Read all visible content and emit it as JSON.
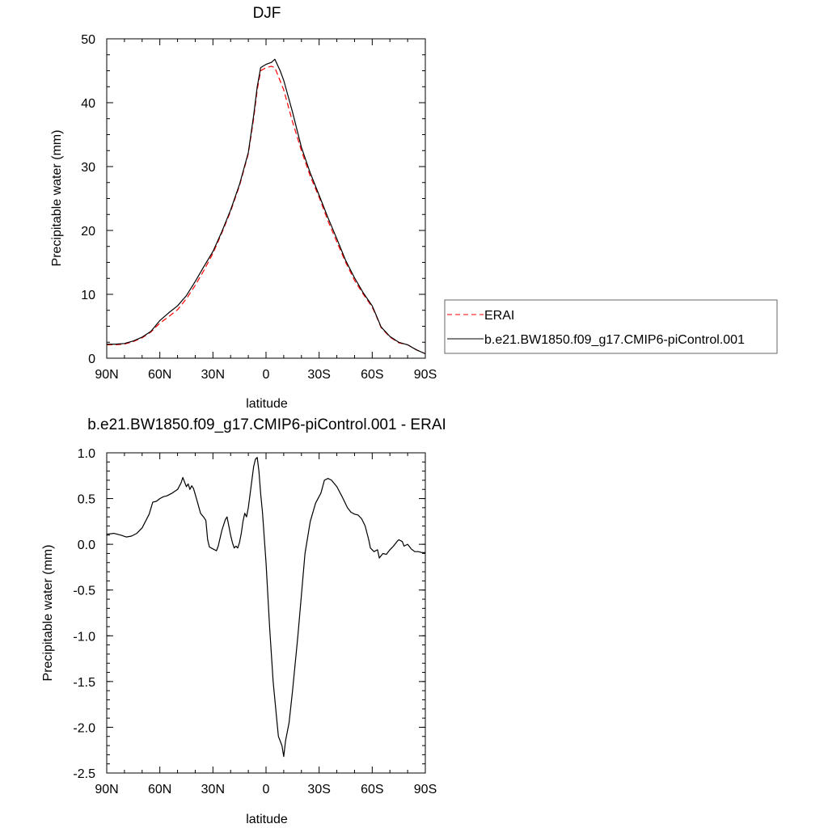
{
  "chart_data": [
    {
      "type": "line",
      "title": "DJF",
      "xlabel": "latitude",
      "ylabel": "Precipitable water (mm)",
      "xlim": [
        90,
        -90
      ],
      "ylim": [
        0,
        50
      ],
      "x_ticks": [
        {
          "value": 90,
          "label": "90N"
        },
        {
          "value": 60,
          "label": "60N"
        },
        {
          "value": 30,
          "label": "30N"
        },
        {
          "value": 0,
          "label": "0"
        },
        {
          "value": -30,
          "label": "30S"
        },
        {
          "value": -60,
          "label": "60S"
        },
        {
          "value": -90,
          "label": "90S"
        }
      ],
      "y_ticks": [
        0,
        10,
        20,
        30,
        40,
        50
      ],
      "legend_placement": "right",
      "series": [
        {
          "name": "ERAI",
          "color": "#ff0000",
          "dash": "dashed",
          "points": [
            [
              90,
              2.1
            ],
            [
              85,
              2.1
            ],
            [
              80,
              2.2
            ],
            [
              75,
              2.6
            ],
            [
              70,
              3.2
            ],
            [
              65,
              4.1
            ],
            [
              60,
              5.5
            ],
            [
              55,
              6.5
            ],
            [
              50,
              7.6
            ],
            [
              45,
              9.3
            ],
            [
              40,
              11.4
            ],
            [
              35,
              13.8
            ],
            [
              30,
              16.4
            ],
            [
              25,
              19.6
            ],
            [
              20,
              23.0
            ],
            [
              15,
              27.0
            ],
            [
              10,
              32.0
            ],
            [
              7,
              37.5
            ],
            [
              5,
              42.0
            ],
            [
              3,
              45.0
            ],
            [
              0,
              45.5
            ],
            [
              -3,
              45.7
            ],
            [
              -5,
              45.5
            ],
            [
              -10,
              42.0
            ],
            [
              -15,
              37.0
            ],
            [
              -20,
              32.5
            ],
            [
              -25,
              28.5
            ],
            [
              -30,
              25.2
            ],
            [
              -35,
              21.5
            ],
            [
              -40,
              18.2
            ],
            [
              -45,
              15.0
            ],
            [
              -50,
              12.2
            ],
            [
              -55,
              10.0
            ],
            [
              -60,
              8.0
            ],
            [
              -62,
              6.8
            ],
            [
              -65,
              4.8
            ],
            [
              -70,
              3.3
            ],
            [
              -75,
              2.4
            ],
            [
              -80,
              2.1
            ],
            [
              -85,
              1.3
            ],
            [
              -90,
              0.7
            ]
          ]
        },
        {
          "name": "b.e21.BW1850.f09_g17.CMIP6-piControl.001",
          "color": "#000000",
          "dash": "solid",
          "points": [
            [
              90,
              2.2
            ],
            [
              85,
              2.2
            ],
            [
              80,
              2.3
            ],
            [
              75,
              2.7
            ],
            [
              70,
              3.3
            ],
            [
              65,
              4.2
            ],
            [
              60,
              5.9
            ],
            [
              55,
              7.1
            ],
            [
              50,
              8.2
            ],
            [
              45,
              9.8
            ],
            [
              40,
              12.0
            ],
            [
              35,
              14.4
            ],
            [
              30,
              16.7
            ],
            [
              25,
              19.8
            ],
            [
              20,
              23.2
            ],
            [
              15,
              27.2
            ],
            [
              10,
              32.2
            ],
            [
              7,
              38.0
            ],
            [
              5,
              42.5
            ],
            [
              3,
              45.5
            ],
            [
              0,
              46.0
            ],
            [
              -3,
              46.3
            ],
            [
              -5,
              46.8
            ],
            [
              -8,
              45.0
            ],
            [
              -10,
              43.5
            ],
            [
              -15,
              38.5
            ],
            [
              -20,
              33.0
            ],
            [
              -25,
              29.0
            ],
            [
              -30,
              25.5
            ],
            [
              -35,
              22.0
            ],
            [
              -40,
              18.7
            ],
            [
              -45,
              15.3
            ],
            [
              -50,
              12.6
            ],
            [
              -55,
              10.2
            ],
            [
              -60,
              8.2
            ],
            [
              -62,
              6.9
            ],
            [
              -65,
              4.9
            ],
            [
              -70,
              3.4
            ],
            [
              -75,
              2.5
            ],
            [
              -80,
              2.1
            ],
            [
              -85,
              1.3
            ],
            [
              -90,
              0.7
            ]
          ]
        }
      ]
    },
    {
      "type": "line",
      "title": "b.e21.BW1850.f09_g17.CMIP6-piControl.001 - ERAI",
      "xlabel": "latitude",
      "ylabel": "Precipitable water (mm)",
      "xlim": [
        90,
        -90
      ],
      "ylim": [
        -2.5,
        1.0
      ],
      "x_ticks": [
        {
          "value": 90,
          "label": "90N"
        },
        {
          "value": 60,
          "label": "60N"
        },
        {
          "value": 30,
          "label": "30N"
        },
        {
          "value": 0,
          "label": "0"
        },
        {
          "value": -30,
          "label": "30S"
        },
        {
          "value": -60,
          "label": "60S"
        },
        {
          "value": -90,
          "label": "90S"
        }
      ],
      "y_ticks": [
        "1.0",
        "0.5",
        "0.0",
        "-0.5",
        "-1.0",
        "-1.5",
        "-2.0",
        "-2.5"
      ],
      "series": [
        {
          "name": "",
          "color": "#000000",
          "dash": "solid",
          "points": [
            [
              90,
              0.11
            ],
            [
              86,
              0.12
            ],
            [
              82,
              0.1
            ],
            [
              79,
              0.08
            ],
            [
              76,
              0.09
            ],
            [
              73,
              0.12
            ],
            [
              70,
              0.18
            ],
            [
              66,
              0.33
            ],
            [
              64,
              0.46
            ],
            [
              62,
              0.47
            ],
            [
              60,
              0.5
            ],
            [
              58,
              0.52
            ],
            [
              56,
              0.53
            ],
            [
              53,
              0.56
            ],
            [
              50,
              0.6
            ],
            [
              48,
              0.67
            ],
            [
              47,
              0.73
            ],
            [
              46,
              0.68
            ],
            [
              45,
              0.63
            ],
            [
              44,
              0.66
            ],
            [
              43,
              0.6
            ],
            [
              42,
              0.64
            ],
            [
              41,
              0.61
            ],
            [
              39,
              0.48
            ],
            [
              37,
              0.34
            ],
            [
              35,
              0.29
            ],
            [
              34,
              0.26
            ],
            [
              33,
              0.05
            ],
            [
              32,
              -0.03
            ],
            [
              30,
              -0.05
            ],
            [
              28,
              -0.07
            ],
            [
              27,
              -0.02
            ],
            [
              25,
              0.15
            ],
            [
              23,
              0.27
            ],
            [
              22,
              0.3
            ],
            [
              21,
              0.2
            ],
            [
              20,
              0.1
            ],
            [
              19,
              0.02
            ],
            [
              18,
              -0.04
            ],
            [
              17,
              -0.02
            ],
            [
              16,
              -0.04
            ],
            [
              15,
              0.02
            ],
            [
              14,
              0.12
            ],
            [
              13,
              0.25
            ],
            [
              12,
              0.34
            ],
            [
              11,
              0.3
            ],
            [
              10,
              0.4
            ],
            [
              9,
              0.55
            ],
            [
              8,
              0.7
            ],
            [
              7,
              0.85
            ],
            [
              6,
              0.93
            ],
            [
              5,
              0.95
            ],
            [
              4,
              0.8
            ],
            [
              3,
              0.55
            ],
            [
              2,
              0.35
            ],
            [
              0,
              -0.2
            ],
            [
              -2,
              -0.9
            ],
            [
              -4,
              -1.5
            ],
            [
              -6,
              -1.9
            ],
            [
              -7,
              -2.1
            ],
            [
              -8,
              -2.15
            ],
            [
              -9,
              -2.2
            ],
            [
              -10,
              -2.32
            ],
            [
              -11,
              -2.15
            ],
            [
              -13,
              -1.95
            ],
            [
              -15,
              -1.6
            ],
            [
              -18,
              -1.0
            ],
            [
              -20,
              -0.55
            ],
            [
              -22,
              -0.1
            ],
            [
              -25,
              0.25
            ],
            [
              -28,
              0.45
            ],
            [
              -31,
              0.56
            ],
            [
              -33,
              0.7
            ],
            [
              -35,
              0.72
            ],
            [
              -37,
              0.7
            ],
            [
              -40,
              0.63
            ],
            [
              -43,
              0.52
            ],
            [
              -46,
              0.4
            ],
            [
              -48,
              0.35
            ],
            [
              -50,
              0.33
            ],
            [
              -52,
              0.32
            ],
            [
              -54,
              0.28
            ],
            [
              -56,
              0.2
            ],
            [
              -58,
              0.05
            ],
            [
              -59,
              -0.04
            ],
            [
              -61,
              -0.08
            ],
            [
              -63,
              -0.06
            ],
            [
              -64,
              -0.15
            ],
            [
              -66,
              -0.1
            ],
            [
              -68,
              -0.11
            ],
            [
              -70,
              -0.06
            ],
            [
              -72,
              -0.02
            ],
            [
              -74,
              0.03
            ],
            [
              -75,
              0.05
            ],
            [
              -77,
              0.03
            ],
            [
              -78,
              -0.02
            ],
            [
              -80,
              0.0
            ],
            [
              -82,
              -0.05
            ],
            [
              -84,
              -0.08
            ],
            [
              -86,
              -0.08
            ],
            [
              -88,
              -0.09
            ],
            [
              -90,
              -0.09
            ]
          ]
        }
      ]
    }
  ]
}
